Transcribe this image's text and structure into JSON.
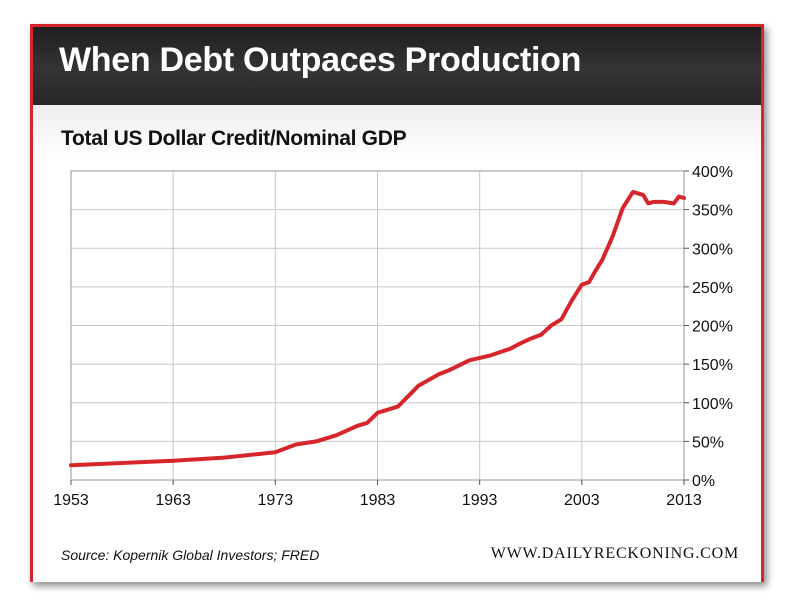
{
  "header": {
    "title": "When Debt Outpaces Production"
  },
  "footer": {
    "source": "Source: Kopernik Global Investors; FRED",
    "site": "WWW.DAILYRECKONING.COM"
  },
  "chart_data": {
    "type": "line",
    "title": "Total US Dollar Credit/Nominal GDP",
    "xlabel": "",
    "ylabel": "",
    "xlim": [
      1953,
      2013
    ],
    "ylim": [
      0,
      400
    ],
    "x_ticks": [
      1953,
      1963,
      1973,
      1983,
      1993,
      2003,
      2013
    ],
    "x_tick_labels": [
      "1953",
      "1963",
      "1973",
      "1983",
      "1993",
      "2003",
      "2013"
    ],
    "y_ticks": [
      0,
      50,
      100,
      150,
      200,
      250,
      300,
      350,
      400
    ],
    "y_tick_labels": [
      "0%",
      "50%",
      "100%",
      "150%",
      "200%",
      "250%",
      "300%",
      "350%",
      "400%"
    ],
    "grid": true,
    "legend": "none",
    "series": [
      {
        "color": "#d7262b",
        "x": [
          1953,
          1958,
          1963,
          1968,
          1973,
          1975,
          1977,
          1979,
          1981,
          1982,
          1983,
          1985,
          1987,
          1989,
          1990,
          1992,
          1994,
          1996,
          1997,
          1998,
          1999,
          2000,
          2001,
          2002,
          2003,
          2003.7,
          2004.3,
          2005,
          2006,
          2007,
          2008,
          2009,
          2009.5,
          2010,
          2011,
          2012,
          2012.5,
          2013
        ],
        "y": [
          19,
          22,
          25,
          29,
          36,
          46,
          50,
          58,
          70,
          74,
          87,
          95,
          122,
          137,
          142,
          155,
          161,
          170,
          177,
          183,
          188,
          200,
          208,
          232,
          253,
          256,
          270,
          285,
          315,
          352,
          373,
          369,
          358,
          360,
          360,
          358,
          367,
          365
        ]
      }
    ]
  }
}
